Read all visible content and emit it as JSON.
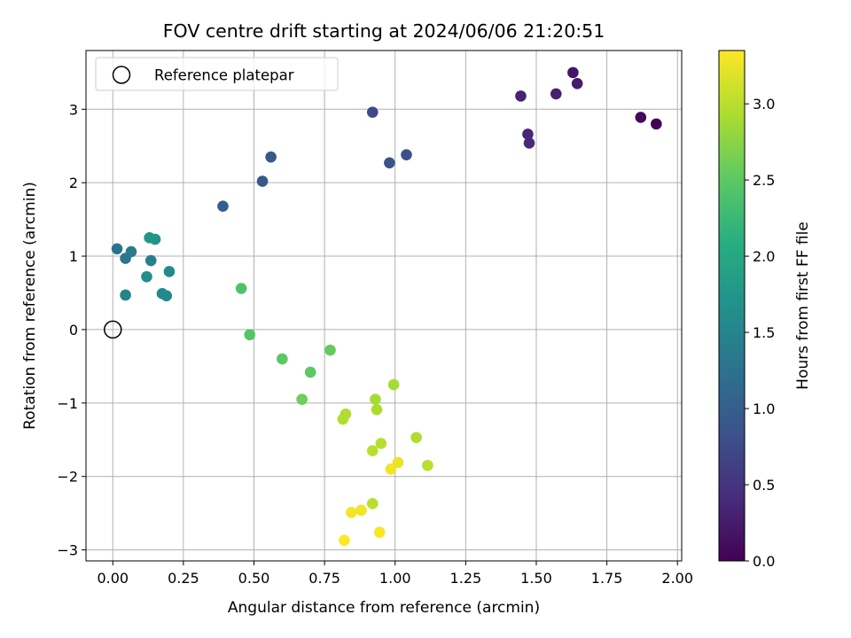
{
  "chart_data": {
    "type": "scatter",
    "title": "FOV centre drift starting at 2024/06/06 21:20:51",
    "xlabel": "Angular distance from reference (arcmin)",
    "ylabel": "Rotation from reference (arcmin)",
    "xlim": [
      -0.095,
      2.015
    ],
    "ylim": [
      -3.15,
      3.8
    ],
    "xticks": [
      0.0,
      0.25,
      0.5,
      0.75,
      1.0,
      1.25,
      1.5,
      1.75,
      2.0
    ],
    "xtick_labels": [
      "0.00",
      "0.25",
      "0.50",
      "0.75",
      "1.00",
      "1.25",
      "1.50",
      "1.75",
      "2.00"
    ],
    "yticks": [
      -3,
      -2,
      -1,
      0,
      1,
      2,
      3
    ],
    "ytick_labels": [
      "−3",
      "−2",
      "−1",
      "0",
      "1",
      "2",
      "3"
    ],
    "grid": true,
    "legend": {
      "position": "top-left",
      "entries": [
        "Reference platepar"
      ]
    },
    "reference_point": {
      "x": 0.0,
      "y": 0.0,
      "marker": "open-circle"
    },
    "colormap": "viridis",
    "colorbar": {
      "label": "Hours from first FF file",
      "range": [
        0.0,
        3.35
      ],
      "ticks": [
        0.0,
        0.5,
        1.0,
        1.5,
        2.0,
        2.5,
        3.0
      ],
      "tick_labels": [
        "0.0",
        "0.5",
        "1.0",
        "1.5",
        "2.0",
        "2.5",
        "3.0"
      ]
    },
    "points": [
      {
        "x": 1.925,
        "y": 2.8,
        "c": 0.0
      },
      {
        "x": 1.87,
        "y": 2.89,
        "c": 0.08
      },
      {
        "x": 1.63,
        "y": 3.5,
        "c": 0.2
      },
      {
        "x": 1.645,
        "y": 3.35,
        "c": 0.25
      },
      {
        "x": 1.57,
        "y": 3.21,
        "c": 0.3
      },
      {
        "x": 1.445,
        "y": 3.18,
        "c": 0.33
      },
      {
        "x": 1.47,
        "y": 2.66,
        "c": 0.36
      },
      {
        "x": 1.475,
        "y": 2.54,
        "c": 0.4
      },
      {
        "x": 0.92,
        "y": 2.96,
        "c": 0.75
      },
      {
        "x": 1.04,
        "y": 2.38,
        "c": 0.8
      },
      {
        "x": 0.98,
        "y": 2.27,
        "c": 0.85
      },
      {
        "x": 0.56,
        "y": 2.35,
        "c": 0.9
      },
      {
        "x": 0.53,
        "y": 2.02,
        "c": 0.92
      },
      {
        "x": 0.39,
        "y": 1.68,
        "c": 1.0
      },
      {
        "x": 0.015,
        "y": 1.1,
        "c": 1.25
      },
      {
        "x": 0.045,
        "y": 0.97,
        "c": 1.3
      },
      {
        "x": 0.065,
        "y": 1.06,
        "c": 1.35
      },
      {
        "x": 0.135,
        "y": 0.94,
        "c": 1.45
      },
      {
        "x": 0.045,
        "y": 0.47,
        "c": 1.5
      },
      {
        "x": 0.19,
        "y": 0.46,
        "c": 1.55
      },
      {
        "x": 0.175,
        "y": 0.49,
        "c": 1.58
      },
      {
        "x": 0.2,
        "y": 0.79,
        "c": 1.6
      },
      {
        "x": 0.12,
        "y": 0.72,
        "c": 1.65
      },
      {
        "x": 0.15,
        "y": 1.23,
        "c": 1.7
      },
      {
        "x": 0.13,
        "y": 1.25,
        "c": 1.75
      },
      {
        "x": 0.455,
        "y": 0.56,
        "c": 2.4
      },
      {
        "x": 0.485,
        "y": -0.07,
        "c": 2.45
      },
      {
        "x": 0.6,
        "y": -0.4,
        "c": 2.5
      },
      {
        "x": 0.7,
        "y": -0.58,
        "c": 2.5
      },
      {
        "x": 0.77,
        "y": -0.28,
        "c": 2.55
      },
      {
        "x": 0.67,
        "y": -0.95,
        "c": 2.6
      },
      {
        "x": 0.995,
        "y": -0.75,
        "c": 2.9
      },
      {
        "x": 0.93,
        "y": -0.95,
        "c": 2.9
      },
      {
        "x": 0.935,
        "y": -1.09,
        "c": 2.92
      },
      {
        "x": 0.825,
        "y": -1.15,
        "c": 2.95
      },
      {
        "x": 0.815,
        "y": -1.22,
        "c": 2.95
      },
      {
        "x": 1.075,
        "y": -1.47,
        "c": 2.95
      },
      {
        "x": 0.95,
        "y": -1.55,
        "c": 2.98
      },
      {
        "x": 0.92,
        "y": -1.65,
        "c": 3.0
      },
      {
        "x": 1.115,
        "y": -1.85,
        "c": 3.0
      },
      {
        "x": 0.92,
        "y": -2.37,
        "c": 3.0
      },
      {
        "x": 1.01,
        "y": -1.81,
        "c": 3.25
      },
      {
        "x": 0.985,
        "y": -1.9,
        "c": 3.28
      },
      {
        "x": 0.88,
        "y": -2.46,
        "c": 3.28
      },
      {
        "x": 0.845,
        "y": -2.49,
        "c": 3.3
      },
      {
        "x": 0.945,
        "y": -2.76,
        "c": 3.33
      },
      {
        "x": 0.82,
        "y": -2.87,
        "c": 3.35
      }
    ]
  }
}
